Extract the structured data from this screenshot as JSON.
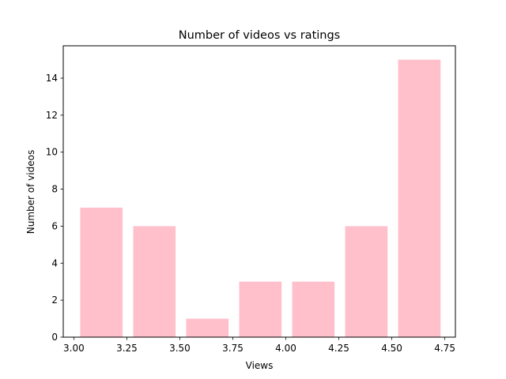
{
  "chart_data": {
    "type": "bar",
    "title": "Number of videos vs ratings",
    "xlabel": "Views",
    "ylabel": "Number of videos",
    "bar_color": "#ffc0cb",
    "bars": [
      {
        "left": 3.03,
        "right": 3.23,
        "value": 7
      },
      {
        "left": 3.28,
        "right": 3.48,
        "value": 6
      },
      {
        "left": 3.53,
        "right": 3.73,
        "value": 1
      },
      {
        "left": 3.78,
        "right": 3.98,
        "value": 3
      },
      {
        "left": 4.03,
        "right": 4.23,
        "value": 3
      },
      {
        "left": 4.28,
        "right": 4.48,
        "value": 6
      },
      {
        "left": 4.53,
        "right": 4.73,
        "value": 15
      }
    ],
    "xlim": [
      2.95,
      4.8
    ],
    "ylim": [
      0,
      15.75
    ],
    "xticks": [
      "3.00",
      "3.25",
      "3.50",
      "3.75",
      "4.00",
      "4.25",
      "4.50",
      "4.75"
    ],
    "yticks": [
      "0",
      "2",
      "4",
      "6",
      "8",
      "10",
      "12",
      "14"
    ],
    "grid": false
  }
}
